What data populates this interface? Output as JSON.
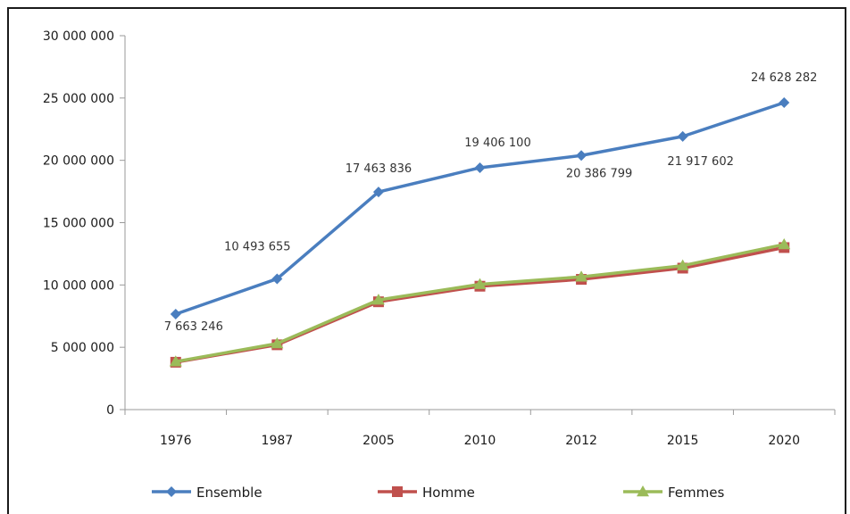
{
  "chart_data": {
    "type": "line",
    "title": "",
    "xlabel": "",
    "ylabel": "",
    "categories": [
      "1976",
      "1987",
      "2005",
      "2010",
      "2012",
      "2015",
      "2020"
    ],
    "ylim": [
      0,
      30000000
    ],
    "yticks": [
      0,
      5000000,
      10000000,
      15000000,
      20000000,
      25000000,
      30000000
    ],
    "ytick_labels": [
      "0",
      "5 000 000",
      "10 000 000",
      "15 000 000",
      "20 000 000",
      "25 000 000",
      "30 000 000"
    ],
    "grid": false,
    "legend_position": "bottom",
    "series": [
      {
        "name": "Ensemble",
        "color": "#4a7ebf",
        "marker": "diamond",
        "values": [
          7663246,
          10493655,
          17463836,
          19406100,
          20386799,
          21917602,
          24628282
        ],
        "labels": [
          "7 663 246",
          "10 493 655",
          "17 463 836",
          "19 406 100",
          "20 386 799",
          "21 917 602",
          "24 628 282"
        ]
      },
      {
        "name": "Homme",
        "color": "#c0504d",
        "marker": "square",
        "values": [
          3800000,
          5200000,
          8650000,
          9900000,
          10450000,
          11350000,
          13000000
        ]
      },
      {
        "name": "Femmes",
        "color": "#9bbb59",
        "marker": "triangle",
        "values": [
          3850000,
          5300000,
          8800000,
          10050000,
          10650000,
          11550000,
          13250000
        ]
      }
    ]
  }
}
